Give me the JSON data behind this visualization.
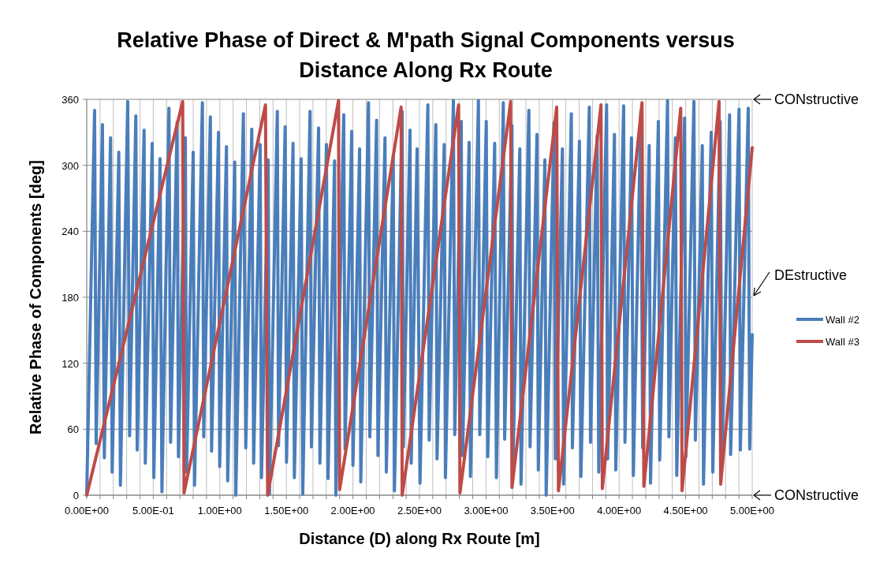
{
  "chart_data": {
    "type": "line",
    "title": "Relative Phase of Direct & M'path Signal Components versus Distance Along Rx Route",
    "xlabel": "Distance (D) along Rx Route [m]",
    "ylabel": "Relative Phase of Components [deg]",
    "xlim": [
      0,
      5
    ],
    "ylim": [
      0,
      360
    ],
    "xticks": [
      {
        "value": 0,
        "label": "0.00E+00"
      },
      {
        "value": 0.1,
        "label": null
      },
      {
        "value": 0.2,
        "label": null
      },
      {
        "value": 0.3,
        "label": null
      },
      {
        "value": 0.4,
        "label": null
      },
      {
        "value": 0.5,
        "label": "5.00E-01"
      },
      {
        "value": 0.6,
        "label": null
      },
      {
        "value": 0.7,
        "label": null
      },
      {
        "value": 0.8,
        "label": null
      },
      {
        "value": 0.9,
        "label": null
      },
      {
        "value": 1,
        "label": "1.00E+00"
      },
      {
        "value": 1.1,
        "label": null
      },
      {
        "value": 1.2,
        "label": null
      },
      {
        "value": 1.3,
        "label": null
      },
      {
        "value": 1.4,
        "label": null
      },
      {
        "value": 1.5,
        "label": "1.50E+00"
      },
      {
        "value": 1.6,
        "label": null
      },
      {
        "value": 1.7,
        "label": null
      },
      {
        "value": 1.8,
        "label": null
      },
      {
        "value": 1.9,
        "label": null
      },
      {
        "value": 2,
        "label": "2.00E+00"
      },
      {
        "value": 2.1,
        "label": null
      },
      {
        "value": 2.2,
        "label": null
      },
      {
        "value": 2.3,
        "label": null
      },
      {
        "value": 2.4,
        "label": null
      },
      {
        "value": 2.5,
        "label": "2.50E+00"
      },
      {
        "value": 2.6,
        "label": null
      },
      {
        "value": 2.7,
        "label": null
      },
      {
        "value": 2.8,
        "label": null
      },
      {
        "value": 2.9,
        "label": null
      },
      {
        "value": 3,
        "label": "3.00E+00"
      },
      {
        "value": 3.1,
        "label": null
      },
      {
        "value": 3.2,
        "label": null
      },
      {
        "value": 3.3,
        "label": null
      },
      {
        "value": 3.4,
        "label": null
      },
      {
        "value": 3.5,
        "label": "3.50E+00"
      },
      {
        "value": 3.6,
        "label": null
      },
      {
        "value": 3.7,
        "label": null
      },
      {
        "value": 3.8,
        "label": null
      },
      {
        "value": 3.9,
        "label": null
      },
      {
        "value": 4,
        "label": "4.00E+00"
      },
      {
        "value": 4.1,
        "label": null
      },
      {
        "value": 4.2,
        "label": null
      },
      {
        "value": 4.3,
        "label": null
      },
      {
        "value": 4.4,
        "label": null
      },
      {
        "value": 4.5,
        "label": "4.50E+00"
      },
      {
        "value": 4.6,
        "label": null
      },
      {
        "value": 4.7,
        "label": null
      },
      {
        "value": 4.8,
        "label": null
      },
      {
        "value": 4.9,
        "label": null
      },
      {
        "value": 5,
        "label": "5.00E+00"
      }
    ],
    "yticks": [
      0,
      60,
      120,
      180,
      240,
      300,
      360
    ],
    "grid": true,
    "legend": "right",
    "marker": "none",
    "annotations": [
      "CONstructive",
      "DEstructive",
      "CONstructive"
    ],
    "series": [
      {
        "name": "Wall #2",
        "color": "#4a7ebb",
        "x": [
          0,
          0.059,
          0.071,
          0.118,
          0.132,
          0.179,
          0.191,
          0.241,
          0.253,
          0.308,
          0.322,
          0.369,
          0.379,
          0.431,
          0.44,
          0.492,
          0.504,
          0.551,
          0.565,
          0.618,
          0.63,
          0.679,
          0.689,
          0.741,
          0.75,
          0.8,
          0.81,
          0.869,
          0.879,
          0.929,
          0.938,
          0.99,
          0.999,
          1.05,
          1.059,
          1.112,
          1.12,
          1.177,
          1.195,
          1.24,
          1.254,
          1.303,
          1.313,
          1.363,
          1.373,
          1.432,
          1.441,
          1.491,
          1.501,
          1.55,
          1.56,
          1.611,
          1.623,
          1.678,
          1.688,
          1.742,
          1.752,
          1.801,
          1.813,
          1.862,
          1.872,
          1.931,
          1.941,
          1.991,
          2,
          2.05,
          2.059,
          2.117,
          2.127,
          2.178,
          2.188,
          2.241,
          2.251,
          2.303,
          2.312,
          2.37,
          2.379,
          2.429,
          2.438,
          2.482,
          2.504,
          2.563,
          2.573,
          2.623,
          2.632,
          2.686,
          2.695,
          2.755,
          2.765,
          2.814,
          2.824,
          2.873,
          2.883,
          2.943,
          2.953,
          3.002,
          3.013,
          3.065,
          3.078,
          3.13,
          3.14,
          3.195,
          3.203,
          3.254,
          3.263,
          3.322,
          3.331,
          3.383,
          3.393,
          3.442,
          3.452,
          3.511,
          3.521,
          3.574,
          3.583,
          3.641,
          3.649,
          3.702,
          3.713,
          3.776,
          3.785,
          3.835,
          3.847,
          3.906,
          3.914,
          3.965,
          3.975,
          4.034,
          4.044,
          4.093,
          4.107,
          4.163,
          4.177,
          4.226,
          4.236,
          4.295,
          4.305,
          4.364,
          4.374,
          4.423,
          4.433,
          4.492,
          4.502,
          4.562,
          4.573,
          4.625,
          4.634,
          4.692,
          4.704,
          4.759,
          4.773,
          4.83,
          4.838,
          4.901,
          4.911,
          4.97,
          4.981,
          5
        ],
        "values": [
          2,
          350,
          47,
          337,
          34,
          325,
          21,
          312,
          9,
          358,
          54,
          345,
          41,
          332,
          29,
          320,
          16,
          306,
          3,
          352,
          48,
          339,
          35,
          325,
          21,
          312,
          9,
          357,
          53,
          344,
          40,
          330,
          26,
          317,
          13,
          303,
          0,
          347,
          43,
          333,
          29,
          319,
          16,
          305,
          1,
          349,
          45,
          335,
          30,
          320,
          16,
          306,
          1,
          349,
          44,
          334,
          29,
          319,
          15,
          304,
          0,
          346,
          42,
          331,
          27,
          315,
          12,
          357,
          53,
          341,
          36,
          325,
          21,
          309,
          4,
          349,
          44,
          332,
          29,
          315,
          11,
          355,
          50,
          337,
          33,
          319,
          16,
          359,
          55,
          340,
          36,
          321,
          17,
          359,
          55,
          340,
          35,
          320,
          16,
          357,
          51,
          336,
          30,
          315,
          10,
          350,
          44,
          328,
          23,
          305,
          0,
          339,
          33,
          315,
          10,
          347,
          43,
          322,
          17,
          353,
          48,
          327,
          21,
          355,
          33,
          328,
          23,
          354,
          48,
          325,
          18,
          349,
          43,
          318,
          11,
          340,
          32,
          359,
          53,
          325,
          18,
          343,
          35,
          358,
          50,
          318,
          10,
          330,
          21,
          340,
          33,
          346,
          37,
          351,
          41,
          352,
          42,
          146
        ]
      },
      {
        "name": "Wall #3",
        "color": "#be4b48",
        "x": [
          0,
          0.721,
          0.731,
          1.343,
          1.359,
          1.892,
          1.9,
          2.362,
          2.37,
          2.794,
          2.804,
          3.185,
          3.195,
          3.531,
          3.544,
          3.864,
          3.874,
          4.172,
          4.186,
          4.463,
          4.473,
          4.751,
          4.763,
          5
        ],
        "values": [
          0,
          358,
          2,
          355,
          0,
          359,
          5,
          353,
          0,
          355,
          2,
          358,
          7,
          353,
          4,
          355,
          6,
          357,
          8,
          352,
          4,
          358,
          10,
          316
        ]
      }
    ]
  }
}
